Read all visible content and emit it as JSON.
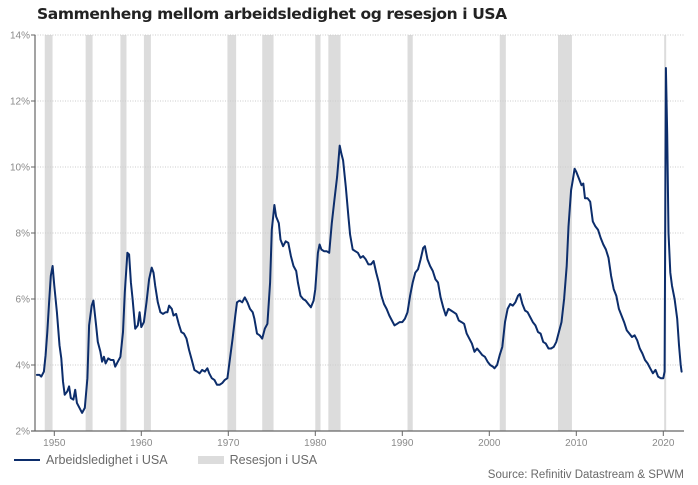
{
  "title": "Sammenheng mellom arbeidsledighet og resesjon i USA",
  "source": "Source: Refinitiv Datastream & SPWM",
  "legend": {
    "line_label": "Arbeidsledighet i USA",
    "band_label": "Resesjon i USA"
  },
  "colors": {
    "line": "#0c2d6b",
    "recession": "#dcdcdc",
    "grid": "#cccccc",
    "axis": "#666666",
    "text": "#8a8a8a"
  },
  "chart_data": {
    "type": "line",
    "title": "Sammenheng mellom arbeidsledighet og resesjon i USA",
    "xlabel": "",
    "ylabel": "",
    "xlim": [
      1948,
      2022.5
    ],
    "ylim": [
      2,
      14
    ],
    "grid": true,
    "legend_position": "bottom-left",
    "x_ticks": [
      1950,
      1960,
      1970,
      1980,
      1990,
      2000,
      2010,
      2020
    ],
    "x_tick_labels": [
      "1950",
      "1960",
      "1970",
      "1980",
      "1990",
      "2000",
      "2010",
      "2020"
    ],
    "y_ticks": [
      2,
      4,
      6,
      8,
      10,
      12,
      14
    ],
    "y_tick_labels": [
      "2%",
      "4%",
      "6%",
      "8%",
      "10%",
      "12%",
      "14%"
    ],
    "recessions": [
      {
        "start": 1948.9,
        "end": 1949.8
      },
      {
        "start": 1953.6,
        "end": 1954.4
      },
      {
        "start": 1957.6,
        "end": 1958.3
      },
      {
        "start": 1960.3,
        "end": 1961.1
      },
      {
        "start": 1969.9,
        "end": 1970.9
      },
      {
        "start": 1973.9,
        "end": 1975.2
      },
      {
        "start": 1980.0,
        "end": 1980.6
      },
      {
        "start": 1981.5,
        "end": 1982.9
      },
      {
        "start": 1990.6,
        "end": 1991.2
      },
      {
        "start": 2001.2,
        "end": 2001.9
      },
      {
        "start": 2007.9,
        "end": 2009.5
      },
      {
        "start": 2020.1,
        "end": 2020.3
      }
    ],
    "series": [
      {
        "name": "Arbeidsledighet i USA",
        "points": [
          [
            1948.0,
            3.7
          ],
          [
            1948.3,
            3.7
          ],
          [
            1948.5,
            3.65
          ],
          [
            1948.8,
            3.8
          ],
          [
            1949.0,
            4.3
          ],
          [
            1949.2,
            5.0
          ],
          [
            1949.4,
            5.9
          ],
          [
            1949.6,
            6.7
          ],
          [
            1949.8,
            7.0
          ],
          [
            1950.0,
            6.4
          ],
          [
            1950.3,
            5.6
          ],
          [
            1950.6,
            4.6
          ],
          [
            1950.8,
            4.2
          ],
          [
            1951.0,
            3.5
          ],
          [
            1951.2,
            3.1
          ],
          [
            1951.5,
            3.2
          ],
          [
            1951.7,
            3.35
          ],
          [
            1951.9,
            3.0
          ],
          [
            1952.2,
            2.95
          ],
          [
            1952.4,
            3.25
          ],
          [
            1952.6,
            2.85
          ],
          [
            1952.9,
            2.7
          ],
          [
            1953.2,
            2.55
          ],
          [
            1953.5,
            2.7
          ],
          [
            1953.8,
            3.6
          ],
          [
            1954.0,
            5.2
          ],
          [
            1954.3,
            5.8
          ],
          [
            1954.5,
            5.95
          ],
          [
            1954.8,
            5.2
          ],
          [
            1955.0,
            4.7
          ],
          [
            1955.3,
            4.4
          ],
          [
            1955.5,
            4.1
          ],
          [
            1955.7,
            4.25
          ],
          [
            1955.9,
            4.05
          ],
          [
            1956.2,
            4.2
          ],
          [
            1956.5,
            4.15
          ],
          [
            1956.8,
            4.15
          ],
          [
            1957.0,
            3.95
          ],
          [
            1957.3,
            4.1
          ],
          [
            1957.6,
            4.25
          ],
          [
            1957.9,
            5.0
          ],
          [
            1958.1,
            6.2
          ],
          [
            1958.4,
            7.4
          ],
          [
            1958.6,
            7.35
          ],
          [
            1958.8,
            6.5
          ],
          [
            1959.0,
            6.0
          ],
          [
            1959.3,
            5.1
          ],
          [
            1959.6,
            5.2
          ],
          [
            1959.8,
            5.6
          ],
          [
            1960.0,
            5.15
          ],
          [
            1960.3,
            5.3
          ],
          [
            1960.6,
            5.9
          ],
          [
            1960.9,
            6.6
          ],
          [
            1961.2,
            6.95
          ],
          [
            1961.4,
            6.8
          ],
          [
            1961.6,
            6.4
          ],
          [
            1961.9,
            5.9
          ],
          [
            1962.2,
            5.6
          ],
          [
            1962.5,
            5.55
          ],
          [
            1962.8,
            5.6
          ],
          [
            1963.0,
            5.6
          ],
          [
            1963.2,
            5.8
          ],
          [
            1963.5,
            5.7
          ],
          [
            1963.7,
            5.5
          ],
          [
            1964.0,
            5.55
          ],
          [
            1964.3,
            5.25
          ],
          [
            1964.6,
            5.0
          ],
          [
            1964.9,
            4.95
          ],
          [
            1965.2,
            4.8
          ],
          [
            1965.5,
            4.45
          ],
          [
            1965.8,
            4.15
          ],
          [
            1966.1,
            3.85
          ],
          [
            1966.4,
            3.8
          ],
          [
            1966.7,
            3.75
          ],
          [
            1967.0,
            3.85
          ],
          [
            1967.3,
            3.8
          ],
          [
            1967.6,
            3.9
          ],
          [
            1967.8,
            3.75
          ],
          [
            1968.1,
            3.6
          ],
          [
            1968.4,
            3.55
          ],
          [
            1968.7,
            3.4
          ],
          [
            1969.0,
            3.4
          ],
          [
            1969.3,
            3.45
          ],
          [
            1969.6,
            3.55
          ],
          [
            1969.9,
            3.6
          ],
          [
            1970.2,
            4.2
          ],
          [
            1970.5,
            4.8
          ],
          [
            1970.8,
            5.5
          ],
          [
            1971.0,
            5.9
          ],
          [
            1971.3,
            5.95
          ],
          [
            1971.6,
            5.9
          ],
          [
            1971.9,
            6.05
          ],
          [
            1972.2,
            5.9
          ],
          [
            1972.5,
            5.7
          ],
          [
            1972.8,
            5.6
          ],
          [
            1973.0,
            5.4
          ],
          [
            1973.3,
            4.95
          ],
          [
            1973.6,
            4.9
          ],
          [
            1973.9,
            4.8
          ],
          [
            1974.2,
            5.1
          ],
          [
            1974.5,
            5.25
          ],
          [
            1974.8,
            6.5
          ],
          [
            1975.0,
            8.1
          ],
          [
            1975.3,
            8.85
          ],
          [
            1975.5,
            8.5
          ],
          [
            1975.8,
            8.3
          ],
          [
            1976.0,
            7.8
          ],
          [
            1976.3,
            7.6
          ],
          [
            1976.6,
            7.75
          ],
          [
            1976.9,
            7.7
          ],
          [
            1977.2,
            7.3
          ],
          [
            1977.5,
            7.0
          ],
          [
            1977.8,
            6.85
          ],
          [
            1978.0,
            6.5
          ],
          [
            1978.3,
            6.1
          ],
          [
            1978.6,
            6.0
          ],
          [
            1978.9,
            5.95
          ],
          [
            1979.2,
            5.85
          ],
          [
            1979.5,
            5.75
          ],
          [
            1979.8,
            5.95
          ],
          [
            1980.0,
            6.3
          ],
          [
            1980.3,
            7.4
          ],
          [
            1980.5,
            7.65
          ],
          [
            1980.7,
            7.5
          ],
          [
            1981.0,
            7.45
          ],
          [
            1981.3,
            7.45
          ],
          [
            1981.6,
            7.4
          ],
          [
            1981.9,
            8.3
          ],
          [
            1982.2,
            9.0
          ],
          [
            1982.5,
            9.7
          ],
          [
            1982.8,
            10.65
          ],
          [
            1983.0,
            10.4
          ],
          [
            1983.2,
            10.2
          ],
          [
            1983.5,
            9.4
          ],
          [
            1983.8,
            8.5
          ],
          [
            1984.0,
            7.95
          ],
          [
            1984.3,
            7.5
          ],
          [
            1984.6,
            7.45
          ],
          [
            1984.9,
            7.4
          ],
          [
            1985.2,
            7.25
          ],
          [
            1985.5,
            7.3
          ],
          [
            1985.8,
            7.2
          ],
          [
            1986.1,
            7.05
          ],
          [
            1986.4,
            7.05
          ],
          [
            1986.7,
            7.15
          ],
          [
            1987.0,
            6.8
          ],
          [
            1987.3,
            6.5
          ],
          [
            1987.6,
            6.1
          ],
          [
            1987.9,
            5.85
          ],
          [
            1988.2,
            5.7
          ],
          [
            1988.5,
            5.5
          ],
          [
            1988.8,
            5.35
          ],
          [
            1989.1,
            5.2
          ],
          [
            1989.4,
            5.25
          ],
          [
            1989.7,
            5.3
          ],
          [
            1990.0,
            5.3
          ],
          [
            1990.3,
            5.4
          ],
          [
            1990.6,
            5.6
          ],
          [
            1990.9,
            6.1
          ],
          [
            1991.2,
            6.5
          ],
          [
            1991.5,
            6.8
          ],
          [
            1991.8,
            6.9
          ],
          [
            1992.1,
            7.2
          ],
          [
            1992.4,
            7.55
          ],
          [
            1992.6,
            7.6
          ],
          [
            1992.9,
            7.2
          ],
          [
            1993.2,
            7.0
          ],
          [
            1993.5,
            6.85
          ],
          [
            1993.8,
            6.6
          ],
          [
            1994.1,
            6.5
          ],
          [
            1994.4,
            6.05
          ],
          [
            1994.7,
            5.75
          ],
          [
            1995.0,
            5.5
          ],
          [
            1995.3,
            5.7
          ],
          [
            1995.6,
            5.65
          ],
          [
            1995.9,
            5.6
          ],
          [
            1996.2,
            5.55
          ],
          [
            1996.5,
            5.35
          ],
          [
            1996.8,
            5.3
          ],
          [
            1997.1,
            5.25
          ],
          [
            1997.4,
            4.95
          ],
          [
            1997.7,
            4.8
          ],
          [
            1998.0,
            4.65
          ],
          [
            1998.3,
            4.4
          ],
          [
            1998.6,
            4.5
          ],
          [
            1998.9,
            4.4
          ],
          [
            1999.2,
            4.3
          ],
          [
            1999.5,
            4.25
          ],
          [
            1999.8,
            4.1
          ],
          [
            2000.1,
            4.0
          ],
          [
            2000.4,
            3.95
          ],
          [
            2000.6,
            3.9
          ],
          [
            2000.9,
            4.0
          ],
          [
            2001.2,
            4.3
          ],
          [
            2001.5,
            4.55
          ],
          [
            2001.8,
            5.3
          ],
          [
            2002.1,
            5.7
          ],
          [
            2002.4,
            5.85
          ],
          [
            2002.7,
            5.8
          ],
          [
            2003.0,
            5.9
          ],
          [
            2003.3,
            6.1
          ],
          [
            2003.5,
            6.15
          ],
          [
            2003.8,
            5.85
          ],
          [
            2004.1,
            5.65
          ],
          [
            2004.4,
            5.6
          ],
          [
            2004.7,
            5.45
          ],
          [
            2005.0,
            5.3
          ],
          [
            2005.3,
            5.2
          ],
          [
            2005.6,
            5.0
          ],
          [
            2005.9,
            4.95
          ],
          [
            2006.2,
            4.7
          ],
          [
            2006.5,
            4.65
          ],
          [
            2006.8,
            4.5
          ],
          [
            2007.1,
            4.5
          ],
          [
            2007.4,
            4.55
          ],
          [
            2007.7,
            4.7
          ],
          [
            2008.0,
            5.0
          ],
          [
            2008.3,
            5.3
          ],
          [
            2008.6,
            6.0
          ],
          [
            2008.9,
            7.0
          ],
          [
            2009.1,
            8.2
          ],
          [
            2009.4,
            9.3
          ],
          [
            2009.6,
            9.6
          ],
          [
            2009.8,
            9.95
          ],
          [
            2010.0,
            9.85
          ],
          [
            2010.3,
            9.65
          ],
          [
            2010.6,
            9.45
          ],
          [
            2010.8,
            9.5
          ],
          [
            2011.0,
            9.05
          ],
          [
            2011.3,
            9.05
          ],
          [
            2011.6,
            8.95
          ],
          [
            2011.9,
            8.35
          ],
          [
            2012.2,
            8.2
          ],
          [
            2012.5,
            8.1
          ],
          [
            2012.8,
            7.85
          ],
          [
            2013.1,
            7.65
          ],
          [
            2013.4,
            7.5
          ],
          [
            2013.7,
            7.25
          ],
          [
            2014.0,
            6.7
          ],
          [
            2014.3,
            6.3
          ],
          [
            2014.6,
            6.1
          ],
          [
            2014.9,
            5.7
          ],
          [
            2015.2,
            5.5
          ],
          [
            2015.5,
            5.3
          ],
          [
            2015.8,
            5.05
          ],
          [
            2016.1,
            4.95
          ],
          [
            2016.4,
            4.85
          ],
          [
            2016.7,
            4.9
          ],
          [
            2017.0,
            4.75
          ],
          [
            2017.3,
            4.5
          ],
          [
            2017.6,
            4.35
          ],
          [
            2017.9,
            4.15
          ],
          [
            2018.2,
            4.05
          ],
          [
            2018.5,
            3.9
          ],
          [
            2018.8,
            3.75
          ],
          [
            2019.1,
            3.85
          ],
          [
            2019.4,
            3.65
          ],
          [
            2019.7,
            3.6
          ],
          [
            2020.0,
            3.6
          ],
          [
            2020.15,
            3.8
          ],
          [
            2020.3,
            13.0
          ],
          [
            2020.45,
            11.0
          ],
          [
            2020.6,
            8.0
          ],
          [
            2020.8,
            6.8
          ],
          [
            2021.0,
            6.4
          ],
          [
            2021.3,
            6.0
          ],
          [
            2021.6,
            5.4
          ],
          [
            2021.8,
            4.6
          ],
          [
            2022.0,
            4.0
          ],
          [
            2022.1,
            3.8
          ]
        ]
      }
    ]
  }
}
